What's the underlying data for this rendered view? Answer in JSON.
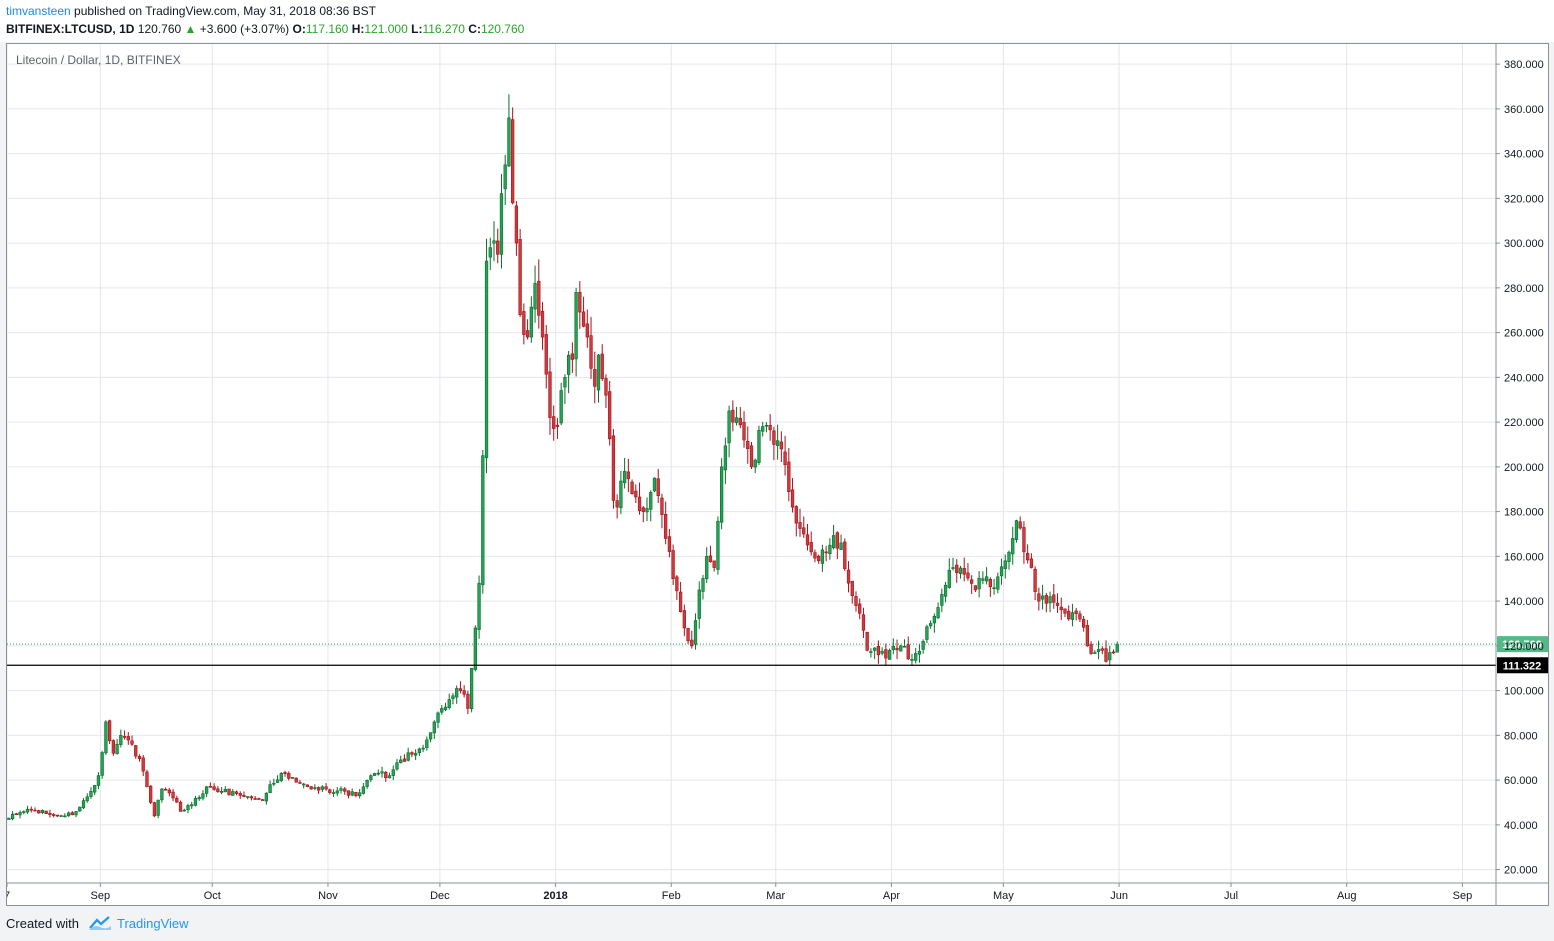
{
  "header": {
    "author": "timvansteen",
    "published_text": "published on TradingView.com, May 31, 2018 08:36 BST",
    "symbol": "BITFINEX:LTCUSD, 1D",
    "last_price": "120.760",
    "change_arrow": "▲",
    "change": "+3.600 (+3.07%)",
    "open_label": "O:",
    "open_value": "117.160",
    "high_label": "H:",
    "high_value": "121.000",
    "low_label": "L:",
    "low_value": "116.270",
    "close_label": "C:",
    "close_value": "120.760"
  },
  "footer": {
    "created_label": "Created with",
    "brand": "TradingView"
  },
  "colors": {
    "up": "#0c6d2b",
    "down": "#a3121c",
    "grid": "#e4e6eb",
    "accent": "#2196f3"
  },
  "chart_data": {
    "type": "candlestick",
    "title": "Litecoin / Dollar, 1D, BITFINEX",
    "interval": "1D",
    "y_ticks": [
      "20.000",
      "40.000",
      "60.000",
      "80.000",
      "100.000",
      "120.000",
      "140.000",
      "160.000",
      "180.000",
      "200.000",
      "220.000",
      "240.000",
      "260.000",
      "280.000",
      "300.000",
      "320.000",
      "340.000",
      "360.000",
      "380.000"
    ],
    "ylim": [
      14,
      389
    ],
    "x_ticks": [
      {
        "date": "2017-08-07",
        "label": "7"
      },
      {
        "date": "2017-09-01",
        "label": "Sep"
      },
      {
        "date": "2017-10-01",
        "label": "Oct"
      },
      {
        "date": "2017-11-01",
        "label": "Nov"
      },
      {
        "date": "2017-12-01",
        "label": "Dec"
      },
      {
        "date": "2018-01-01",
        "label": "2018",
        "bold": true
      },
      {
        "date": "2018-02-01",
        "label": "Feb"
      },
      {
        "date": "2018-03-01",
        "label": "Mar"
      },
      {
        "date": "2018-04-01",
        "label": "Apr"
      },
      {
        "date": "2018-05-01",
        "label": "May"
      },
      {
        "date": "2018-06-01",
        "label": "Jun"
      },
      {
        "date": "2018-07-01",
        "label": "Jul"
      },
      {
        "date": "2018-08-01",
        "label": "Aug"
      },
      {
        "date": "2018-09-01",
        "label": "Sep"
      }
    ],
    "xlim": [
      "2017-08-07",
      "2018-09-10"
    ],
    "last_price_label": "120.760",
    "horizontal_line": {
      "value": 111.322,
      "label": "111.322"
    },
    "grid": true,
    "anchors": [
      [
        "2017-08-07",
        43
      ],
      [
        "2017-08-12",
        47
      ],
      [
        "2017-08-17",
        45
      ],
      [
        "2017-08-22",
        44
      ],
      [
        "2017-08-25",
        46
      ],
      [
        "2017-08-29",
        55
      ],
      [
        "2017-08-31",
        62
      ],
      [
        "2017-09-02",
        86
      ],
      [
        "2017-09-04",
        72
      ],
      [
        "2017-09-06",
        80
      ],
      [
        "2017-09-09",
        76
      ],
      [
        "2017-09-12",
        64
      ],
      [
        "2017-09-14",
        50
      ],
      [
        "2017-09-15",
        44
      ],
      [
        "2017-09-17",
        56
      ],
      [
        "2017-09-20",
        52
      ],
      [
        "2017-09-22",
        46
      ],
      [
        "2017-09-25",
        49
      ],
      [
        "2017-09-29",
        57
      ],
      [
        "2017-10-03",
        55
      ],
      [
        "2017-10-07",
        54
      ],
      [
        "2017-10-11",
        52
      ],
      [
        "2017-10-14",
        51
      ],
      [
        "2017-10-16",
        58
      ],
      [
        "2017-10-19",
        63
      ],
      [
        "2017-10-23",
        59
      ],
      [
        "2017-10-27",
        56
      ],
      [
        "2017-10-31",
        56
      ],
      [
        "2017-11-05",
        55
      ],
      [
        "2017-11-08",
        53
      ],
      [
        "2017-11-10",
        57
      ],
      [
        "2017-11-13",
        63
      ],
      [
        "2017-11-17",
        62
      ],
      [
        "2017-11-20",
        69
      ],
      [
        "2017-11-24",
        72
      ],
      [
        "2017-11-27",
        78
      ],
      [
        "2017-11-29",
        86
      ],
      [
        "2017-12-01",
        92
      ],
      [
        "2017-12-03",
        96
      ],
      [
        "2017-12-06",
        100
      ],
      [
        "2017-12-08",
        92
      ],
      [
        "2017-12-10",
        128
      ],
      [
        "2017-12-11",
        148
      ],
      [
        "2017-12-12",
        205
      ],
      [
        "2017-12-13",
        292
      ],
      [
        "2017-12-14",
        298
      ],
      [
        "2017-12-16",
        295
      ],
      [
        "2017-12-18",
        335
      ],
      [
        "2017-12-19",
        356
      ],
      [
        "2017-12-20",
        318
      ],
      [
        "2017-12-21",
        300
      ],
      [
        "2017-12-22",
        268
      ],
      [
        "2017-12-24",
        258
      ],
      [
        "2017-12-26",
        282
      ],
      [
        "2017-12-28",
        258
      ],
      [
        "2017-12-30",
        222
      ],
      [
        "2018-01-01",
        218
      ],
      [
        "2018-01-03",
        240
      ],
      [
        "2018-01-05",
        248
      ],
      [
        "2018-01-06",
        278
      ],
      [
        "2018-01-09",
        258
      ],
      [
        "2018-01-11",
        236
      ],
      [
        "2018-01-12",
        250
      ],
      [
        "2018-01-14",
        232
      ],
      [
        "2018-01-16",
        185
      ],
      [
        "2018-01-17",
        182
      ],
      [
        "2018-01-19",
        198
      ],
      [
        "2018-01-21",
        188
      ],
      [
        "2018-01-24",
        180
      ],
      [
        "2018-01-27",
        195
      ],
      [
        "2018-01-30",
        168
      ],
      [
        "2018-02-01",
        150
      ],
      [
        "2018-02-04",
        128
      ],
      [
        "2018-02-06",
        120
      ],
      [
        "2018-02-08",
        145
      ],
      [
        "2018-02-10",
        160
      ],
      [
        "2018-02-12",
        155
      ],
      [
        "2018-02-14",
        200
      ],
      [
        "2018-02-16",
        225
      ],
      [
        "2018-02-18",
        222
      ],
      [
        "2018-02-20",
        212
      ],
      [
        "2018-02-22",
        200
      ],
      [
        "2018-02-25",
        218
      ],
      [
        "2018-02-28",
        210
      ],
      [
        "2018-03-02",
        208
      ],
      [
        "2018-03-05",
        182
      ],
      [
        "2018-03-08",
        170
      ],
      [
        "2018-03-10",
        162
      ],
      [
        "2018-03-12",
        158
      ],
      [
        "2018-03-15",
        165
      ],
      [
        "2018-03-18",
        166
      ],
      [
        "2018-03-20",
        148
      ],
      [
        "2018-03-22",
        138
      ],
      [
        "2018-03-25",
        118
      ],
      [
        "2018-03-28",
        116
      ],
      [
        "2018-03-31",
        118
      ],
      [
        "2018-04-03",
        120
      ],
      [
        "2018-04-06",
        114
      ],
      [
        "2018-04-09",
        122
      ],
      [
        "2018-04-11",
        130
      ],
      [
        "2018-04-14",
        143
      ],
      [
        "2018-04-17",
        155
      ],
      [
        "2018-04-20",
        152
      ],
      [
        "2018-04-23",
        145
      ],
      [
        "2018-04-25",
        150
      ],
      [
        "2018-04-28",
        146
      ],
      [
        "2018-05-01",
        158
      ],
      [
        "2018-05-03",
        168
      ],
      [
        "2018-05-04",
        176
      ],
      [
        "2018-05-06",
        162
      ],
      [
        "2018-05-08",
        155
      ],
      [
        "2018-05-10",
        140
      ],
      [
        "2018-05-13",
        142
      ],
      [
        "2018-05-15",
        138
      ],
      [
        "2018-05-18",
        132
      ],
      [
        "2018-05-21",
        132
      ],
      [
        "2018-05-23",
        120
      ],
      [
        "2018-05-25",
        117
      ],
      [
        "2018-05-27",
        118
      ],
      [
        "2018-05-28",
        113
      ],
      [
        "2018-05-29",
        117
      ],
      [
        "2018-05-30",
        117.16
      ],
      [
        "2018-05-31",
        120.76
      ]
    ]
  }
}
